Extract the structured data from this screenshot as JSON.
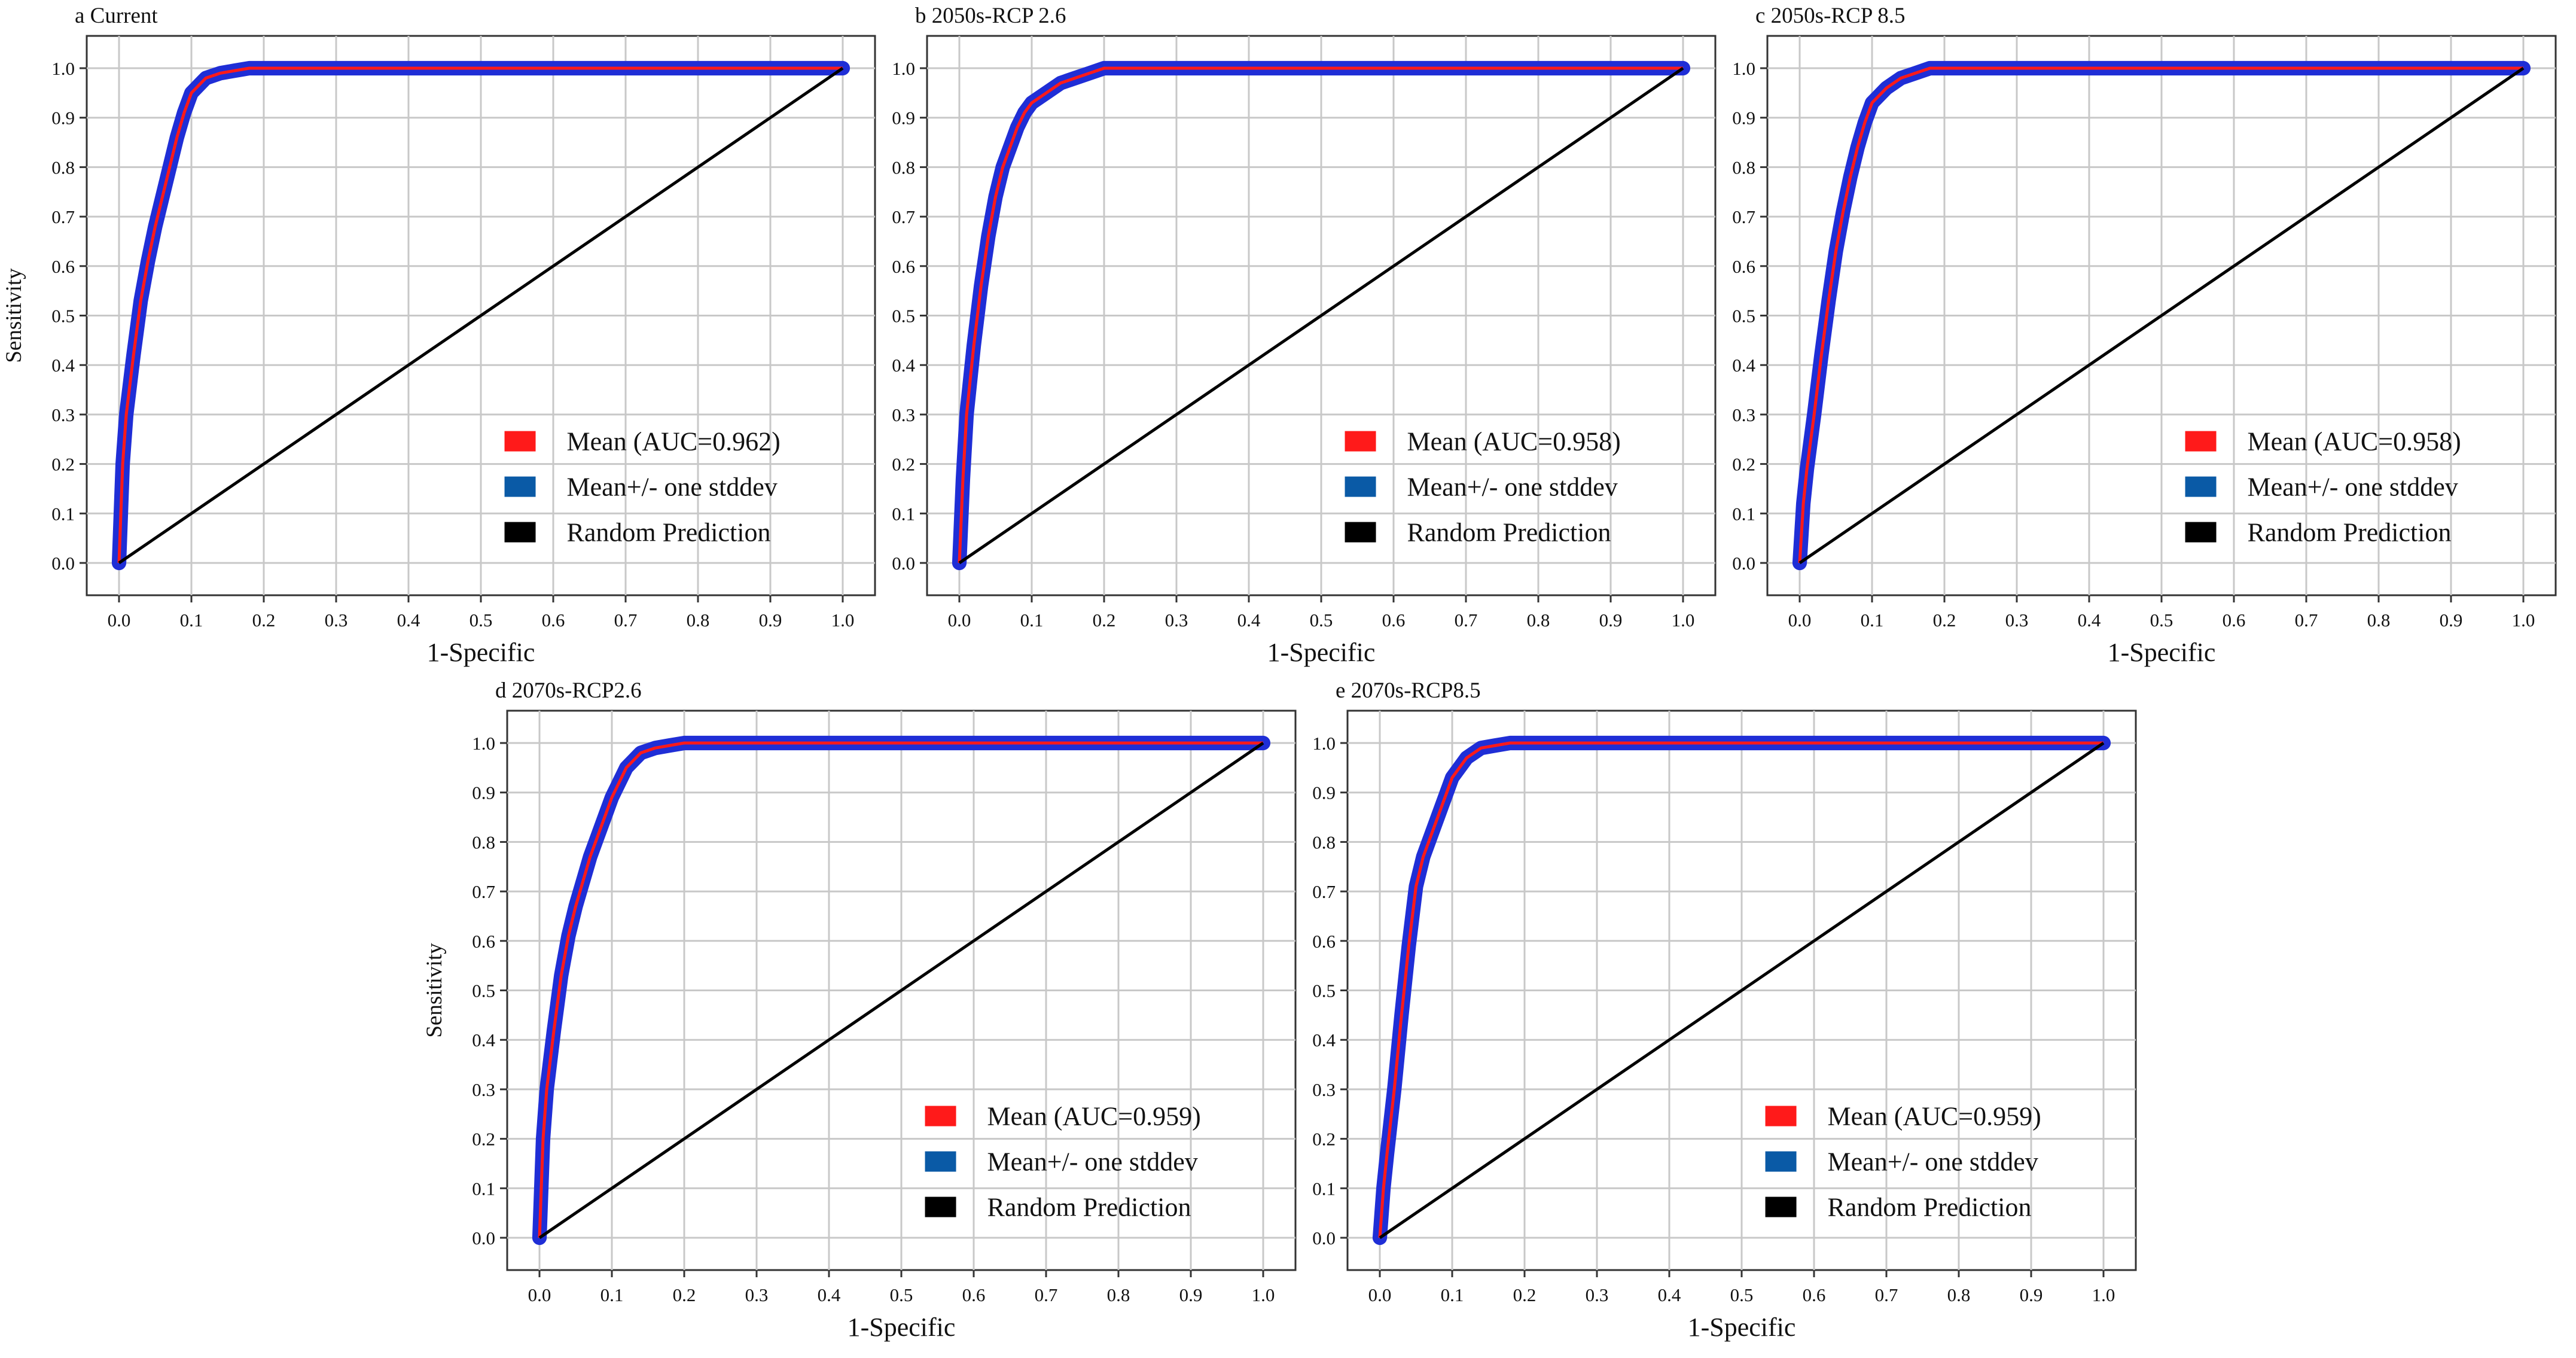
{
  "figure": {
    "panels": [
      {
        "id": "a",
        "title": "a  Current",
        "auc_label": "Mean (AUC=0.962)"
      },
      {
        "id": "b",
        "title": "b 2050s-RCP 2.6",
        "auc_label": "Mean (AUC=0.958)"
      },
      {
        "id": "c",
        "title": "c 2050s-RCP 8.5",
        "auc_label": "Mean (AUC=0.958)"
      },
      {
        "id": "d",
        "title": "d 2070s-RCP2.6",
        "auc_label": "Mean (AUC=0.959)"
      },
      {
        "id": "e",
        "title": "e 2070s-RCP8.5",
        "auc_label": "Mean (AUC=0.959)"
      }
    ]
  },
  "chart_data": [
    {
      "type": "line",
      "title": "a  Current",
      "xlabel": "1-Specific",
      "ylabel": "Sensitivity",
      "xlim": [
        0,
        1
      ],
      "ylim": [
        0,
        1
      ],
      "xticks": [
        "0.0",
        "0.1",
        "0.2",
        "0.3",
        "0.4",
        "0.5",
        "0.6",
        "0.7",
        "0.8",
        "0.9",
        "1.0"
      ],
      "yticks": [
        "0.0",
        "0.1",
        "0.2",
        "0.3",
        "0.4",
        "0.5",
        "0.6",
        "0.7",
        "0.8",
        "0.9",
        "1.0"
      ],
      "grid": true,
      "legend_position": "lower-right",
      "legend": [
        "Mean (AUC=0.962)",
        "Mean+/- one stddev",
        "Random Prediction"
      ],
      "colors": {
        "mean": "#ff1a1a",
        "stddev": "#1f2ed6",
        "random": "#000000",
        "legend_stddev": "#0a5aa6"
      },
      "series": [
        {
          "name": "Mean (AUC=0.962)",
          "x": [
            0,
            0.005,
            0.01,
            0.02,
            0.03,
            0.04,
            0.05,
            0.06,
            0.07,
            0.08,
            0.09,
            0.1,
            0.12,
            0.14,
            0.16,
            0.18,
            0.2,
            1.0
          ],
          "y": [
            0,
            0.2,
            0.3,
            0.42,
            0.53,
            0.61,
            0.68,
            0.74,
            0.8,
            0.86,
            0.91,
            0.95,
            0.98,
            0.99,
            0.995,
            1.0,
            1.0,
            1.0
          ]
        },
        {
          "name": "Mean+/- one stddev",
          "x": [
            0,
            0.005,
            0.01,
            0.02,
            0.03,
            0.04,
            0.05,
            0.06,
            0.07,
            0.08,
            0.09,
            0.1,
            0.12,
            0.14,
            0.16,
            0.18,
            0.2,
            1.0
          ],
          "y": [
            0,
            0.2,
            0.3,
            0.42,
            0.53,
            0.61,
            0.68,
            0.74,
            0.8,
            0.86,
            0.91,
            0.95,
            0.98,
            0.99,
            0.995,
            1.0,
            1.0,
            1.0
          ],
          "band": 0.02
        },
        {
          "name": "Random Prediction",
          "x": [
            0,
            1
          ],
          "y": [
            0,
            1
          ]
        }
      ]
    },
    {
      "type": "line",
      "title": "b 2050s-RCP 2.6",
      "xlabel": "1-Specific",
      "ylabel": "",
      "xlim": [
        0,
        1
      ],
      "ylim": [
        0,
        1
      ],
      "xticks": [
        "0.0",
        "0.1",
        "0.2",
        "0.3",
        "0.4",
        "0.5",
        "0.6",
        "0.7",
        "0.8",
        "0.9",
        "1.0"
      ],
      "yticks": [
        "0.0",
        "0.1",
        "0.2",
        "0.3",
        "0.4",
        "0.5",
        "0.6",
        "0.7",
        "0.8",
        "0.9",
        "1.0"
      ],
      "grid": true,
      "legend_position": "lower-right",
      "legend": [
        "Mean (AUC=0.958)",
        "Mean+/- one stddev",
        "Random Prediction"
      ],
      "colors": {
        "mean": "#ff1a1a",
        "stddev": "#1f2ed6",
        "random": "#000000",
        "legend_stddev": "#0a5aa6"
      },
      "series": [
        {
          "name": "Mean (AUC=0.958)",
          "x": [
            0,
            0.005,
            0.01,
            0.02,
            0.03,
            0.04,
            0.05,
            0.06,
            0.07,
            0.08,
            0.09,
            0.1,
            0.12,
            0.14,
            0.16,
            0.18,
            0.2,
            1.0
          ],
          "y": [
            0,
            0.17,
            0.3,
            0.44,
            0.56,
            0.66,
            0.74,
            0.8,
            0.84,
            0.88,
            0.91,
            0.93,
            0.95,
            0.97,
            0.98,
            0.99,
            1.0,
            1.0
          ]
        },
        {
          "name": "Mean+/- one stddev",
          "x": [
            0,
            0.005,
            0.01,
            0.02,
            0.03,
            0.04,
            0.05,
            0.06,
            0.07,
            0.08,
            0.09,
            0.1,
            0.12,
            0.14,
            0.16,
            0.18,
            0.2,
            1.0
          ],
          "y": [
            0,
            0.17,
            0.3,
            0.44,
            0.56,
            0.66,
            0.74,
            0.8,
            0.84,
            0.88,
            0.91,
            0.93,
            0.95,
            0.97,
            0.98,
            0.99,
            1.0,
            1.0
          ],
          "band": 0.02
        },
        {
          "name": "Random Prediction",
          "x": [
            0,
            1
          ],
          "y": [
            0,
            1
          ]
        }
      ]
    },
    {
      "type": "line",
      "title": "c 2050s-RCP 8.5",
      "xlabel": "1-Specific",
      "ylabel": "",
      "xlim": [
        0,
        1
      ],
      "ylim": [
        0,
        1
      ],
      "xticks": [
        "0.0",
        "0.1",
        "0.2",
        "0.3",
        "0.4",
        "0.5",
        "0.6",
        "0.7",
        "0.8",
        "0.9",
        "1.0"
      ],
      "yticks": [
        "0.0",
        "0.1",
        "0.2",
        "0.3",
        "0.4",
        "0.5",
        "0.6",
        "0.7",
        "0.8",
        "0.9",
        "1.0"
      ],
      "grid": true,
      "legend_position": "lower-right",
      "legend": [
        "Mean (AUC=0.958)",
        "Mean+/- one stddev",
        "Random Prediction"
      ],
      "colors": {
        "mean": "#ff1a1a",
        "stddev": "#1f2ed6",
        "random": "#000000",
        "legend_stddev": "#0a5aa6"
      },
      "series": [
        {
          "name": "Mean (AUC=0.958)",
          "x": [
            0,
            0.005,
            0.01,
            0.02,
            0.03,
            0.04,
            0.05,
            0.06,
            0.07,
            0.08,
            0.09,
            0.1,
            0.12,
            0.14,
            0.16,
            0.18,
            0.2,
            1.0
          ],
          "y": [
            0,
            0.12,
            0.19,
            0.3,
            0.42,
            0.53,
            0.63,
            0.71,
            0.78,
            0.84,
            0.89,
            0.93,
            0.96,
            0.98,
            0.99,
            1.0,
            1.0,
            1.0
          ]
        },
        {
          "name": "Mean+/- one stddev",
          "x": [
            0,
            0.005,
            0.01,
            0.02,
            0.03,
            0.04,
            0.05,
            0.06,
            0.07,
            0.08,
            0.09,
            0.1,
            0.12,
            0.14,
            0.16,
            0.18,
            0.2,
            1.0
          ],
          "y": [
            0,
            0.12,
            0.19,
            0.3,
            0.42,
            0.53,
            0.63,
            0.71,
            0.78,
            0.84,
            0.89,
            0.93,
            0.96,
            0.98,
            0.99,
            1.0,
            1.0,
            1.0
          ],
          "band": 0.02
        },
        {
          "name": "Random Prediction",
          "x": [
            0,
            1
          ],
          "y": [
            0,
            1
          ]
        }
      ]
    },
    {
      "type": "line",
      "title": "d 2070s-RCP2.6",
      "xlabel": "1-Specific",
      "ylabel": "Sensitivity",
      "xlim": [
        0,
        1
      ],
      "ylim": [
        0,
        1
      ],
      "xticks": [
        "0.0",
        "0.1",
        "0.2",
        "0.3",
        "0.4",
        "0.5",
        "0.6",
        "0.7",
        "0.8",
        "0.9",
        "1.0"
      ],
      "yticks": [
        "0.0",
        "0.1",
        "0.2",
        "0.3",
        "0.4",
        "0.5",
        "0.6",
        "0.7",
        "0.8",
        "0.9",
        "1.0"
      ],
      "grid": true,
      "legend_position": "lower-right",
      "legend": [
        "Mean (AUC=0.959)",
        "Mean+/- one stddev",
        "Random Prediction"
      ],
      "colors": {
        "mean": "#ff1a1a",
        "stddev": "#1f2ed6",
        "random": "#000000",
        "legend_stddev": "#0a5aa6"
      },
      "series": [
        {
          "name": "Mean (AUC=0.959)",
          "x": [
            0,
            0.005,
            0.01,
            0.02,
            0.03,
            0.04,
            0.05,
            0.06,
            0.07,
            0.08,
            0.09,
            0.1,
            0.12,
            0.14,
            0.16,
            0.18,
            0.2,
            1.0
          ],
          "y": [
            0,
            0.2,
            0.3,
            0.42,
            0.53,
            0.61,
            0.67,
            0.72,
            0.77,
            0.81,
            0.85,
            0.89,
            0.95,
            0.98,
            0.99,
            0.995,
            1.0,
            1.0
          ]
        },
        {
          "name": "Mean+/- one stddev",
          "x": [
            0,
            0.005,
            0.01,
            0.02,
            0.03,
            0.04,
            0.05,
            0.06,
            0.07,
            0.08,
            0.09,
            0.1,
            0.12,
            0.14,
            0.16,
            0.18,
            0.2,
            1.0
          ],
          "y": [
            0,
            0.2,
            0.3,
            0.42,
            0.53,
            0.61,
            0.67,
            0.72,
            0.77,
            0.81,
            0.85,
            0.89,
            0.95,
            0.98,
            0.99,
            0.995,
            1.0,
            1.0
          ],
          "band": 0.02
        },
        {
          "name": "Random Prediction",
          "x": [
            0,
            1
          ],
          "y": [
            0,
            1
          ]
        }
      ]
    },
    {
      "type": "line",
      "title": "e 2070s-RCP8.5",
      "xlabel": "1-Specific",
      "ylabel": "",
      "xlim": [
        0,
        1
      ],
      "ylim": [
        0,
        1
      ],
      "xticks": [
        "0.0",
        "0.1",
        "0.2",
        "0.3",
        "0.4",
        "0.5",
        "0.6",
        "0.7",
        "0.8",
        "0.9",
        "1.0"
      ],
      "yticks": [
        "0.0",
        "0.1",
        "0.2",
        "0.3",
        "0.4",
        "0.5",
        "0.6",
        "0.7",
        "0.8",
        "0.9",
        "1.0"
      ],
      "grid": true,
      "legend_position": "lower-right",
      "legend": [
        "Mean (AUC=0.959)",
        "Mean+/- one stddev",
        "Random Prediction"
      ],
      "colors": {
        "mean": "#ff1a1a",
        "stddev": "#1f2ed6",
        "random": "#000000",
        "legend_stddev": "#0a5aa6"
      },
      "series": [
        {
          "name": "Mean (AUC=0.959)",
          "x": [
            0,
            0.005,
            0.01,
            0.02,
            0.03,
            0.04,
            0.05,
            0.06,
            0.07,
            0.08,
            0.09,
            0.1,
            0.12,
            0.14,
            0.16,
            0.18,
            0.2,
            1.0
          ],
          "y": [
            0,
            0.1,
            0.17,
            0.3,
            0.45,
            0.59,
            0.71,
            0.77,
            0.81,
            0.85,
            0.89,
            0.93,
            0.97,
            0.99,
            0.995,
            1.0,
            1.0,
            1.0
          ]
        },
        {
          "name": "Mean+/- one stddev",
          "x": [
            0,
            0.005,
            0.01,
            0.02,
            0.03,
            0.04,
            0.05,
            0.06,
            0.07,
            0.08,
            0.09,
            0.1,
            0.12,
            0.14,
            0.16,
            0.18,
            0.2,
            1.0
          ],
          "y": [
            0,
            0.1,
            0.17,
            0.3,
            0.45,
            0.59,
            0.71,
            0.77,
            0.81,
            0.85,
            0.89,
            0.93,
            0.97,
            0.99,
            0.995,
            1.0,
            1.0,
            1.0
          ],
          "band": 0.02
        },
        {
          "name": "Random Prediction",
          "x": [
            0,
            1
          ],
          "y": [
            0,
            1
          ]
        }
      ]
    }
  ]
}
